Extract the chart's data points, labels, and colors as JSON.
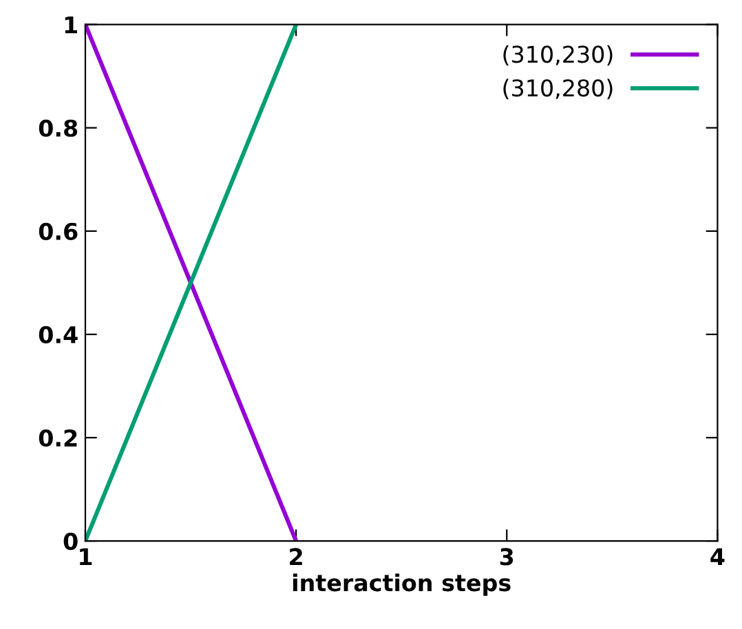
{
  "chart_data": {
    "type": "line",
    "xlabel": "interaction steps",
    "x": [
      1,
      2
    ],
    "series": [
      {
        "name": "(310,230)",
        "color": "#9400d3",
        "values": [
          1,
          0
        ]
      },
      {
        "name": "(310,280)",
        "color": "#009e73",
        "values": [
          0,
          1
        ]
      }
    ],
    "xlim": [
      1,
      4
    ],
    "xticks": [
      1,
      2,
      3,
      4
    ],
    "ylim": [
      0,
      1
    ],
    "yticks": [
      0,
      0.2,
      0.4,
      0.6,
      0.8,
      1
    ],
    "grid": false,
    "legend": "top right",
    "marker": "none",
    "line_style": "solid"
  }
}
